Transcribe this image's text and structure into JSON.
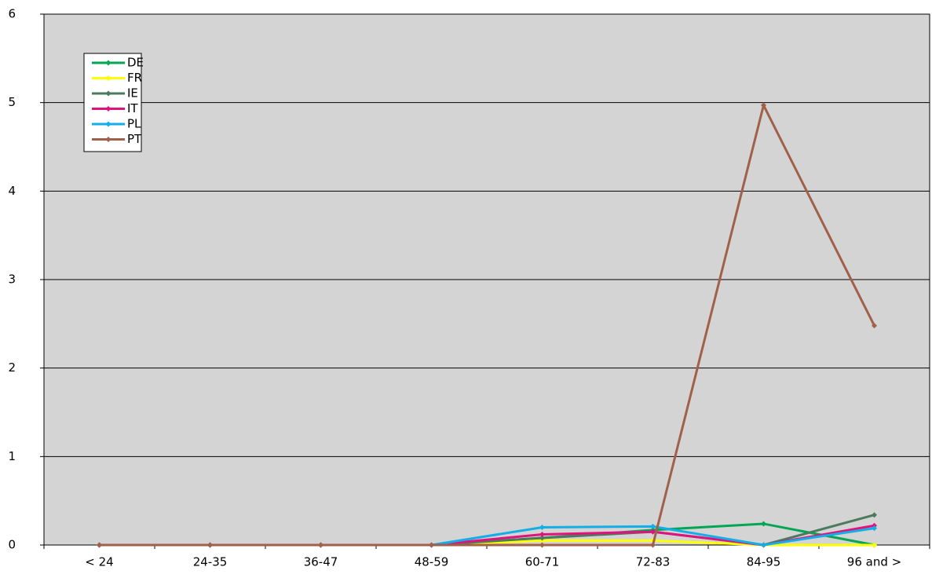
{
  "chart_data": {
    "type": "line",
    "categories": [
      "< 24",
      "24-35",
      "36-47",
      "48-59",
      "60-71",
      "72-83",
      "84-95",
      "96 and >"
    ],
    "series": [
      {
        "name": "DE",
        "color": "#00a651",
        "values": [
          0,
          0,
          0,
          0,
          0.08,
          0.17,
          0.24,
          0
        ]
      },
      {
        "name": "FR",
        "color": "#ffff00",
        "values": [
          0,
          0,
          0,
          0,
          0.05,
          0.05,
          0,
          0
        ]
      },
      {
        "name": "IE",
        "color": "#4b7a5e",
        "values": [
          0,
          0,
          0,
          0,
          0.08,
          0.15,
          0,
          0.34
        ]
      },
      {
        "name": "IT",
        "color": "#e2127c",
        "values": [
          0,
          0,
          0,
          0,
          0.12,
          0.15,
          0,
          0.22
        ]
      },
      {
        "name": "PL",
        "color": "#12aee8",
        "values": [
          0,
          0,
          0,
          0,
          0.2,
          0.21,
          0,
          0.19
        ]
      },
      {
        "name": "PT",
        "color": "#a0604a",
        "values": [
          0,
          0,
          0,
          0,
          0,
          0,
          4.97,
          2.48
        ]
      }
    ],
    "ylim": [
      0,
      6
    ],
    "yticks": [
      0,
      1,
      2,
      3,
      4,
      5,
      6
    ],
    "grid": true,
    "legend": "upper left"
  }
}
